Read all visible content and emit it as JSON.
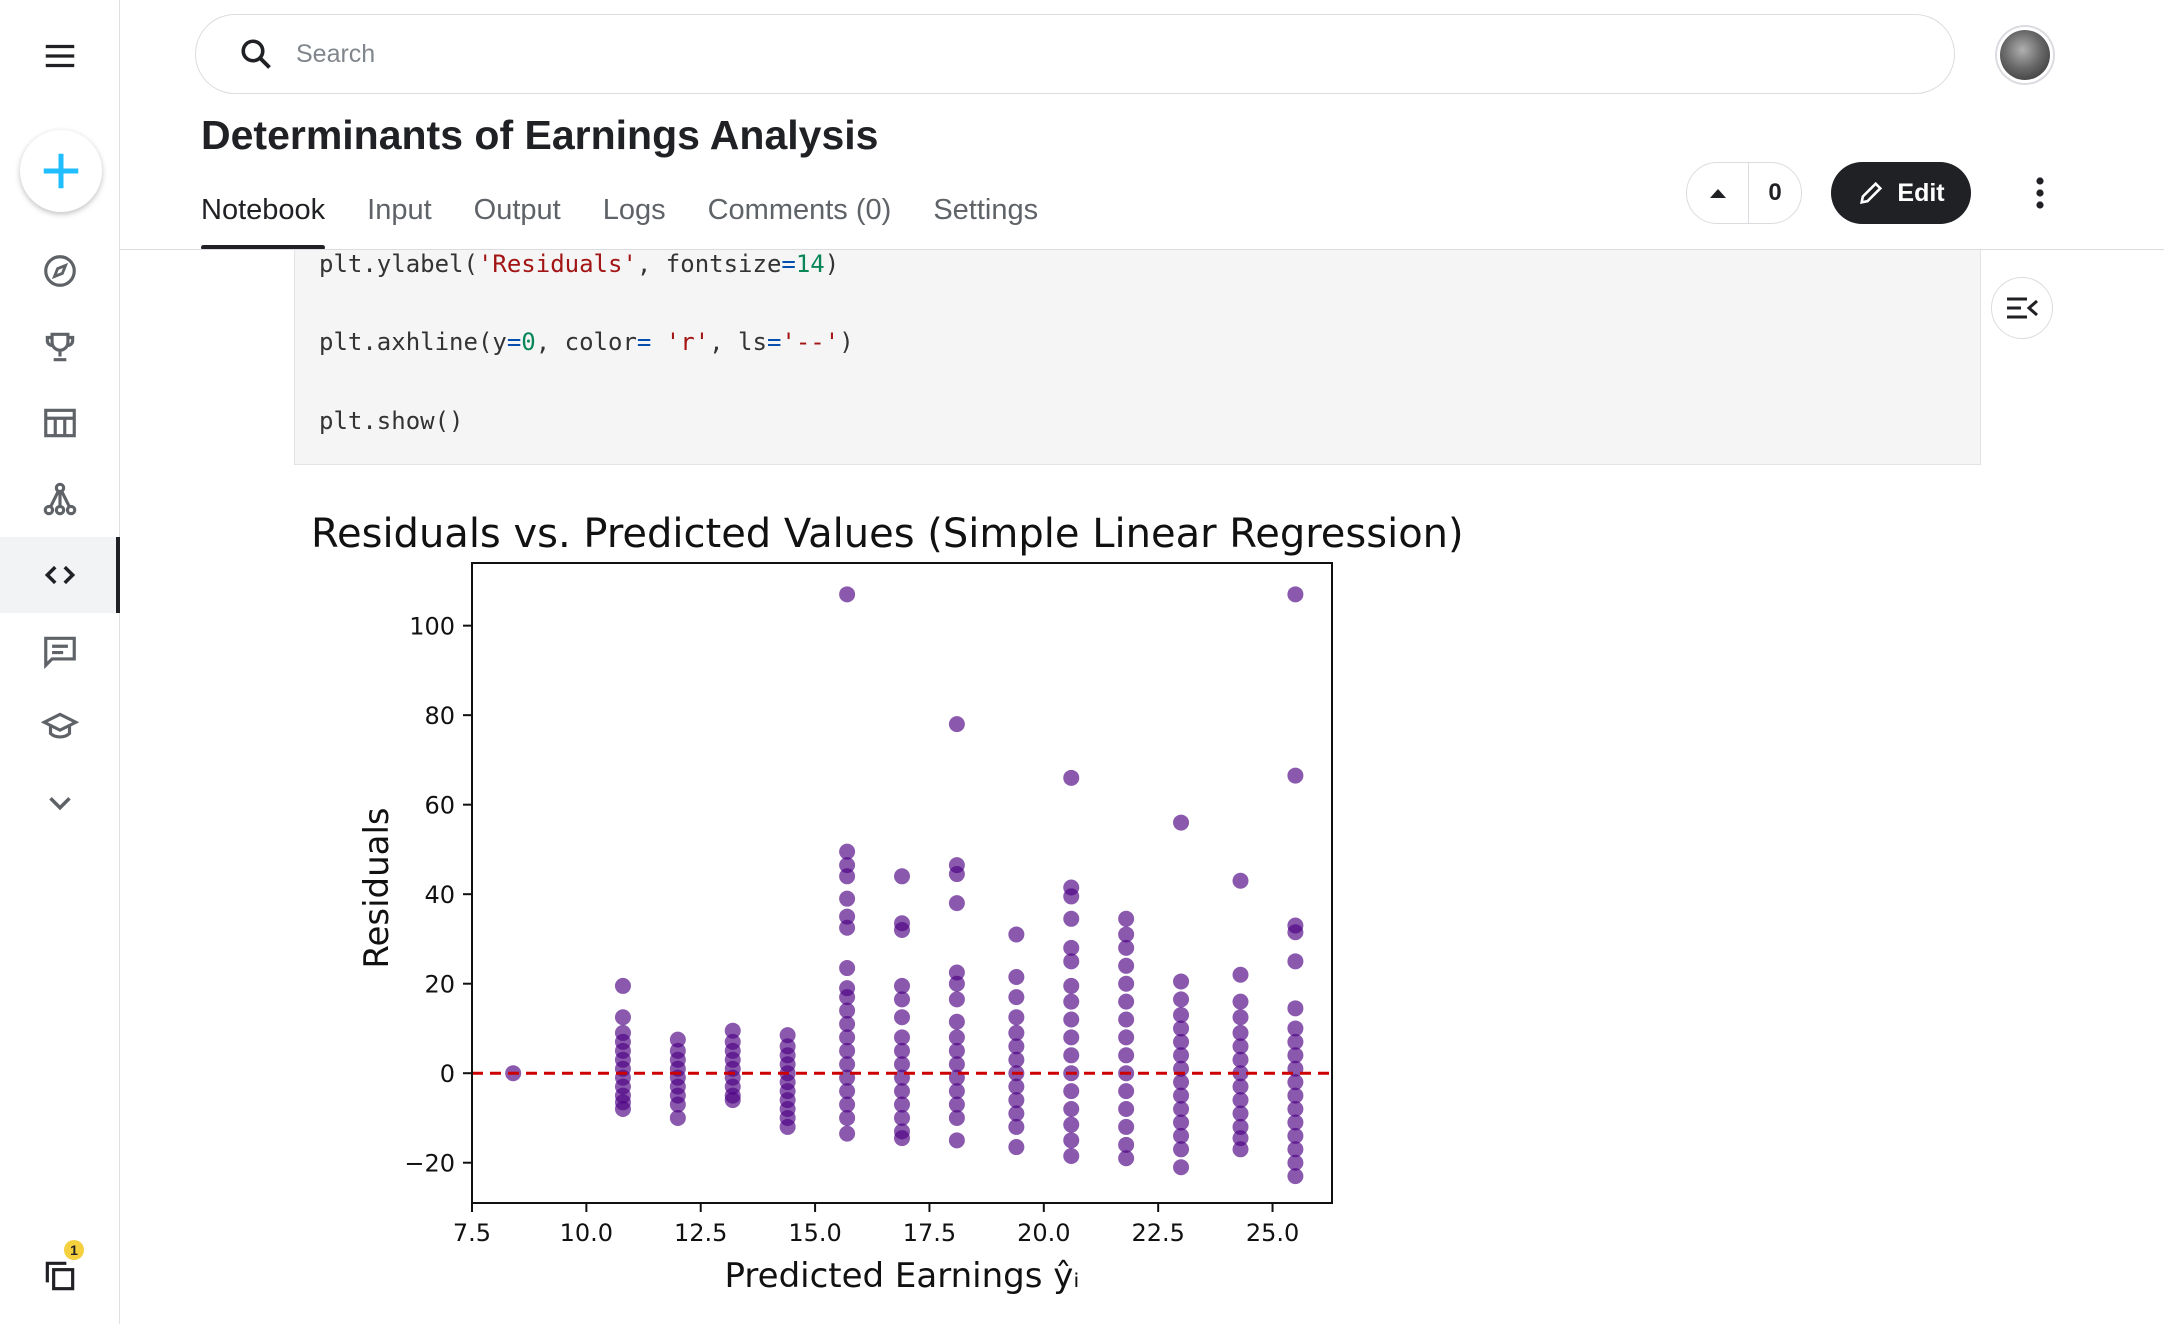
{
  "search": {
    "placeholder": "Search"
  },
  "notebook": {
    "title": "Determinants of Earnings Analysis",
    "tabs": [
      "Notebook",
      "Input",
      "Output",
      "Logs",
      "Comments (0)",
      "Settings"
    ],
    "active_tab": "Notebook",
    "vote_count": "0",
    "edit_label": "Edit"
  },
  "sidebar": {
    "items": [
      "menu-icon",
      "create-icon",
      "compass-icon",
      "trophy-icon",
      "table-icon",
      "models-icon",
      "code-icon",
      "comments-icon",
      "learn-icon",
      "chevron-down-icon",
      "copy-icon"
    ],
    "active": "code-icon",
    "badge_count": "1"
  },
  "code": {
    "line1": {
      "fn": "plt.ylabel(",
      "arg1": "'Residuals'",
      "sep": ", fontsize",
      "eq": "=",
      "num": "14",
      "close": ")"
    },
    "line2": {
      "fn": "plt.axhline(y",
      "eq1": "=",
      "num": "0",
      "sep1": ", color",
      "eq2": "=",
      "str1": " 'r'",
      "sep2": ", ls",
      "eq3": "=",
      "str2": "'--'",
      "close": ")"
    },
    "line3": "plt.show()"
  },
  "colors": {
    "point": "#4b0082",
    "zero_line": "#cc0000",
    "accent": "#20beff",
    "dark": "#202124"
  },
  "chart_data": {
    "type": "scatter",
    "title": "Residuals vs. Predicted Values (Simple Linear Regression)",
    "xlabel": "Predicted Earnings ŷᵢ",
    "ylabel": "Residuals",
    "xlim": [
      7.5,
      26.3
    ],
    "ylim": [
      -29,
      114
    ],
    "xticks": [
      "7.5",
      "10.0",
      "12.5",
      "15.0",
      "17.5",
      "20.0",
      "22.5",
      "25.0"
    ],
    "yticks": [
      "−20",
      "0",
      "20",
      "40",
      "60",
      "80",
      "100"
    ],
    "grid": false,
    "reference_line": {
      "y": 0,
      "style": "dashed",
      "color": "red"
    },
    "series": [
      {
        "x": 8.4,
        "y": [
          0
        ]
      },
      {
        "x": 10.8,
        "y": [
          19.5,
          12.5,
          9,
          7,
          5,
          3,
          1,
          -1,
          -3,
          -5,
          -6.5,
          -8
        ]
      },
      {
        "x": 12.0,
        "y": [
          7.5,
          5,
          3,
          1,
          -1,
          -3,
          -5,
          -7,
          -10
        ]
      },
      {
        "x": 13.2,
        "y": [
          9.5,
          7,
          5,
          3,
          1,
          -1,
          -3,
          -5,
          -6
        ]
      },
      {
        "x": 14.4,
        "y": [
          8.5,
          6,
          4,
          2,
          0,
          -2,
          -4,
          -6,
          -8,
          -10,
          -12
        ]
      },
      {
        "x": 15.7,
        "y": [
          107,
          49.5,
          46.5,
          44,
          39,
          35,
          32.5,
          23.5,
          19,
          17,
          14,
          11,
          8,
          5,
          2,
          -1,
          -4,
          -7,
          -10,
          -13.5
        ]
      },
      {
        "x": 16.9,
        "y": [
          44,
          33.5,
          32,
          19.5,
          16.5,
          12.5,
          8,
          5,
          2,
          -1,
          -4,
          -7,
          -10,
          -13,
          -14.5
        ]
      },
      {
        "x": 18.1,
        "y": [
          78,
          46.5,
          44.5,
          38,
          22.5,
          20,
          16.5,
          11.5,
          8,
          5,
          2,
          -1,
          -4,
          -7,
          -10,
          -15
        ]
      },
      {
        "x": 19.4,
        "y": [
          31,
          21.5,
          17,
          12.5,
          9,
          6,
          3,
          0,
          -3,
          -6,
          -9,
          -12,
          -16.5
        ]
      },
      {
        "x": 20.6,
        "y": [
          66,
          41.5,
          39.5,
          34.5,
          28,
          25,
          19.5,
          16,
          12,
          8,
          4,
          0,
          -4,
          -8,
          -11.5,
          -15,
          -18.5
        ]
      },
      {
        "x": 21.8,
        "y": [
          34.5,
          31,
          28,
          24,
          20,
          16,
          12,
          8,
          4,
          0,
          -4,
          -8,
          -12,
          -16,
          -19
        ]
      },
      {
        "x": 23.0,
        "y": [
          56,
          20.5,
          16.5,
          13,
          10,
          7,
          4,
          1,
          -2,
          -5,
          -8,
          -11,
          -14,
          -17,
          -21
        ]
      },
      {
        "x": 24.3,
        "y": [
          43,
          22,
          16,
          12.5,
          9,
          6,
          3,
          0,
          -3,
          -6,
          -9,
          -12,
          -14.5,
          -17
        ]
      },
      {
        "x": 25.5,
        "y": [
          107,
          66.5,
          33,
          31.5,
          25,
          14.5,
          10,
          7,
          4,
          1,
          -2,
          -5,
          -8,
          -11,
          -14,
          -17,
          -20,
          -23
        ]
      }
    ]
  }
}
